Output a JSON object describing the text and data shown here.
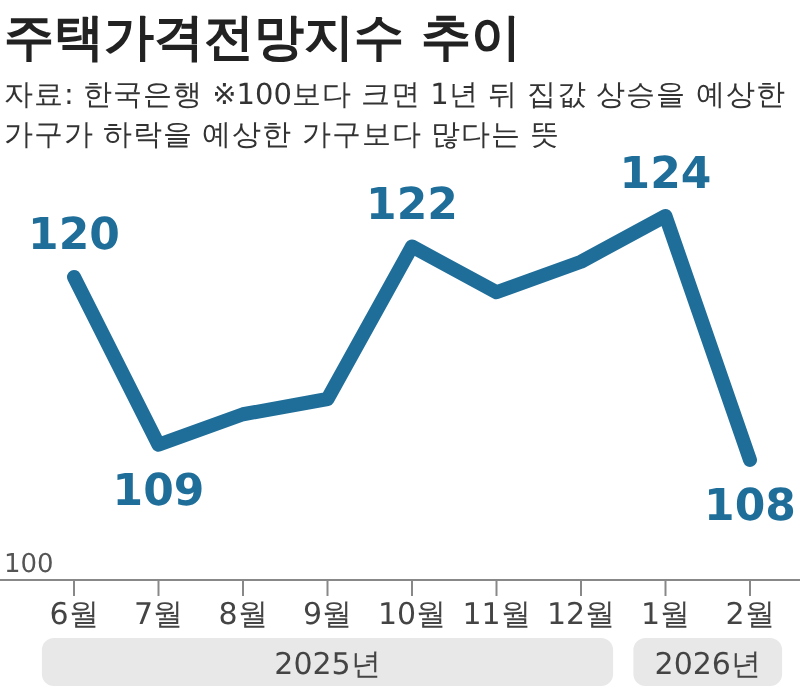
{
  "chart_data": {
    "type": "line",
    "title": "주택가격전망지수 추이",
    "subtitle": "자료: 한국은행 ※100보다 크면 1년 뒤 집값 상승을 예상한 가구가 하락을 예상한 가구보다 많다는 뜻",
    "categories": [
      "6월",
      "7월",
      "8월",
      "9월",
      "10월",
      "11월",
      "12월",
      "1월",
      "2월"
    ],
    "series": [
      {
        "color": "#1f6e9a",
        "values": [
          120,
          109,
          111,
          112,
          122,
          119,
          121,
          124,
          108
        ],
        "value_labels": [
          "120",
          "109",
          null,
          null,
          "122",
          null,
          null,
          "124",
          "108"
        ]
      }
    ],
    "marker": "none",
    "line_style": "solid",
    "annotations": [
      "100",
      "2025년",
      "2026년"
    ]
  }
}
